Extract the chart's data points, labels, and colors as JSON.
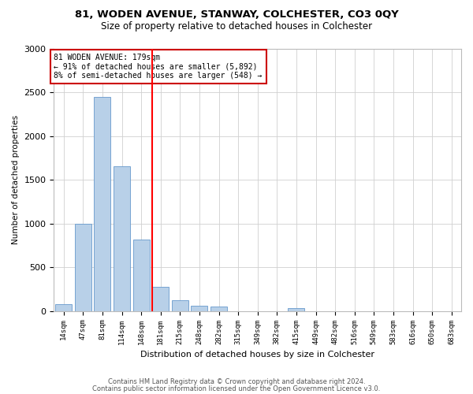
{
  "title": "81, WODEN AVENUE, STANWAY, COLCHESTER, CO3 0QY",
  "subtitle": "Size of property relative to detached houses in Colchester",
  "xlabel": "Distribution of detached houses by size in Colchester",
  "ylabel": "Number of detached properties",
  "categories": [
    "14sqm",
    "47sqm",
    "81sqm",
    "114sqm",
    "148sqm",
    "181sqm",
    "215sqm",
    "248sqm",
    "282sqm",
    "315sqm",
    "349sqm",
    "382sqm",
    "415sqm",
    "449sqm",
    "482sqm",
    "516sqm",
    "549sqm",
    "583sqm",
    "616sqm",
    "650sqm",
    "683sqm"
  ],
  "values": [
    75,
    1000,
    2450,
    1650,
    820,
    280,
    120,
    60,
    55,
    0,
    0,
    0,
    30,
    0,
    0,
    0,
    0,
    0,
    0,
    0,
    0
  ],
  "bar_color": "#b8d0e8",
  "bar_edge_color": "#6699cc",
  "red_line_index": 5,
  "annotation_text": "81 WODEN AVENUE: 179sqm\n← 91% of detached houses are smaller (5,892)\n8% of semi-detached houses are larger (548) →",
  "annotation_box_color": "#ffffff",
  "annotation_box_edge": "#cc0000",
  "ylim": [
    0,
    3000
  ],
  "yticks": [
    0,
    500,
    1000,
    1500,
    2000,
    2500,
    3000
  ],
  "footer1": "Contains HM Land Registry data © Crown copyright and database right 2024.",
  "footer2": "Contains public sector information licensed under the Open Government Licence v3.0.",
  "background_color": "#ffffff",
  "grid_color": "#d0d0d0"
}
